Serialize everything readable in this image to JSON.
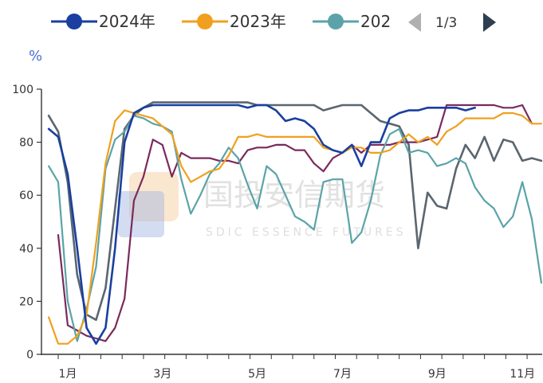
{
  "legend": {
    "items": [
      {
        "label": "2024年",
        "color": "#1a3fa0"
      },
      {
        "label": "2023年",
        "color": "#f0a01e"
      },
      {
        "label": "202",
        "color": "#5ba3a8"
      }
    ],
    "pager": {
      "text": "1/3",
      "prev_icon": "triangle-left-icon",
      "next_icon": "triangle-right-icon"
    }
  },
  "unit": "%",
  "watermark": {
    "cn": "国投安信期货",
    "en": "SDIC ESSENCE FUTURES"
  },
  "chart_data": {
    "type": "line",
    "ylim": [
      0,
      100
    ],
    "yticks": [
      0,
      20,
      40,
      60,
      80,
      100
    ],
    "xlim": [
      1,
      53
    ],
    "xticks": [
      {
        "x": 2,
        "label": "1月"
      },
      {
        "x": 12,
        "label": "3月"
      },
      {
        "x": 22,
        "label": "5月"
      },
      {
        "x": 31,
        "label": "7月"
      },
      {
        "x": 41,
        "label": "9月"
      },
      {
        "x": 50,
        "label": "11月"
      }
    ],
    "series": [
      {
        "name": "2024年",
        "color": "#1a3fa0",
        "width": 2.6,
        "x": [
          1,
          2,
          3,
          4,
          5,
          6,
          7,
          8,
          9,
          10,
          11,
          12,
          13,
          14,
          15,
          16,
          17,
          18,
          19,
          20,
          21,
          22,
          23,
          24,
          25,
          26,
          27,
          28,
          29,
          30,
          31,
          32,
          33,
          34,
          35,
          36,
          37,
          38,
          39,
          40,
          41,
          42,
          43,
          44,
          45,
          46
        ],
        "y": [
          85,
          82,
          68,
          40,
          10,
          4,
          10,
          40,
          80,
          91,
          93,
          94,
          94,
          94,
          94,
          94,
          94,
          94,
          94,
          94,
          94,
          93,
          94,
          94,
          92,
          88,
          89,
          88,
          85,
          79,
          77,
          76,
          79,
          71,
          80,
          80,
          89,
          91,
          92,
          92,
          93,
          93,
          93,
          93,
          92,
          93
        ]
      },
      {
        "name": "2023年",
        "color": "#f0a01e",
        "width": 2.2,
        "x": [
          1,
          2,
          3,
          4,
          5,
          6,
          7,
          8,
          9,
          10,
          11,
          12,
          13,
          14,
          15,
          16,
          17,
          18,
          19,
          20,
          21,
          22,
          23,
          24,
          25,
          26,
          27,
          28,
          29,
          30,
          31,
          32,
          33,
          34,
          35,
          36,
          37,
          38,
          39,
          40,
          41,
          42,
          43,
          44,
          45,
          46,
          47,
          48,
          49,
          50,
          51,
          52,
          53
        ],
        "y": [
          14,
          4,
          4,
          7,
          15,
          42,
          72,
          88,
          92,
          91,
          90,
          89,
          86,
          83,
          71,
          65,
          67,
          69,
          70,
          75,
          82,
          82,
          83,
          82,
          82,
          82,
          82,
          82,
          82,
          78,
          77,
          76,
          78,
          78,
          76,
          76,
          77,
          80,
          83,
          80,
          82,
          79,
          84,
          86,
          89,
          89,
          89,
          89,
          91,
          91,
          90,
          87,
          87
        ]
      },
      {
        "name": "",
        "color": "#5ba3a8",
        "width": 2.2,
        "x": [
          1,
          2,
          3,
          4,
          5,
          6,
          7,
          8,
          9,
          10,
          11,
          12,
          13,
          14,
          15,
          16,
          17,
          18,
          19,
          20,
          21,
          22,
          23,
          24,
          25,
          26,
          27,
          28,
          29,
          30,
          31,
          32,
          33,
          34,
          35,
          36,
          37,
          38,
          39,
          40,
          41,
          42,
          43,
          44,
          45,
          46,
          47,
          48,
          49,
          50,
          51,
          52,
          53
        ],
        "y": [
          71,
          65,
          20,
          5,
          17,
          33,
          70,
          81,
          84,
          90,
          89,
          87,
          86,
          84,
          66,
          53,
          60,
          68,
          72,
          78,
          74,
          64,
          55,
          71,
          68,
          60,
          52,
          50,
          47,
          65,
          66,
          66,
          42,
          46,
          58,
          75,
          83,
          85,
          76,
          77,
          76,
          71,
          72,
          74,
          72,
          63,
          58,
          55,
          48,
          52,
          65,
          51,
          27
        ]
      },
      {
        "name": "",
        "color": "#7a2a5c",
        "width": 2.2,
        "x": [
          2,
          3,
          4,
          5,
          6,
          7,
          8,
          9,
          10,
          11,
          12,
          13,
          14,
          15,
          16,
          17,
          18,
          19,
          20,
          21,
          22,
          23,
          24,
          25,
          26,
          27,
          28,
          29,
          30,
          31,
          32,
          33,
          34,
          35,
          36,
          37,
          38,
          39,
          40,
          41,
          42,
          43,
          44,
          45,
          46,
          47,
          48,
          49,
          50,
          51,
          52
        ],
        "y": [
          45,
          11,
          9,
          7,
          6,
          5,
          10,
          21,
          58,
          67,
          81,
          79,
          67,
          76,
          74,
          74,
          74,
          73,
          73,
          72,
          77,
          78,
          78,
          79,
          79,
          77,
          77,
          72,
          69,
          74,
          76,
          79,
          76,
          79,
          79,
          79,
          80,
          80,
          80,
          81,
          82,
          94,
          94,
          94,
          94,
          94,
          94,
          93,
          93,
          94,
          87
        ]
      },
      {
        "name": "",
        "color": "#5a6670",
        "width": 2.6,
        "x": [
          1,
          2,
          3,
          4,
          5,
          6,
          7,
          8,
          9,
          10,
          11,
          12,
          13,
          14,
          15,
          16,
          17,
          18,
          19,
          20,
          21,
          22,
          23,
          24,
          25,
          26,
          27,
          28,
          29,
          30,
          31,
          32,
          33,
          34,
          35,
          36,
          37,
          38,
          39,
          40,
          41,
          42,
          43,
          44,
          45,
          46,
          47,
          48,
          49,
          50,
          51,
          52,
          53
        ],
        "y": [
          90,
          84,
          65,
          30,
          15,
          13,
          25,
          55,
          85,
          90,
          93,
          95,
          95,
          95,
          95,
          95,
          95,
          95,
          95,
          95,
          95,
          95,
          94,
          94,
          94,
          94,
          94,
          94,
          94,
          92,
          93,
          94,
          94,
          94,
          91,
          88,
          87,
          86,
          79,
          40,
          61,
          56,
          55,
          70,
          79,
          74,
          82,
          73,
          81,
          80,
          73,
          74,
          73
        ]
      }
    ]
  }
}
